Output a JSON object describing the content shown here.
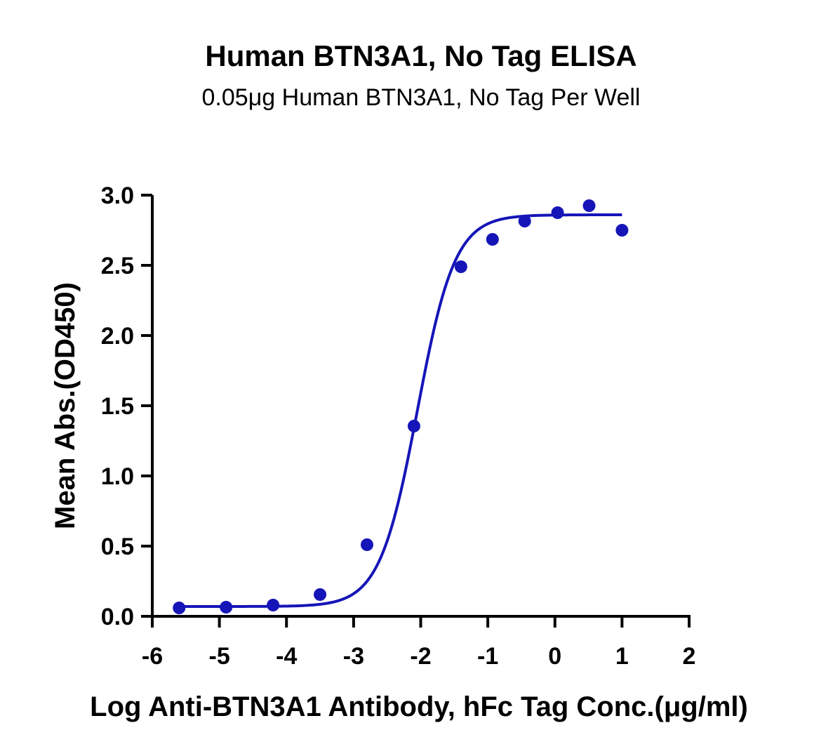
{
  "chart_data": {
    "type": "scatter",
    "title": "Human BTN3A1, No Tag ELISA",
    "subtitle": "0.05μg Human BTN3A1, No Tag Per Well",
    "xlabel": "Log Anti-BTN3A1 Antibody, hFc Tag Conc.(μg/ml)",
    "ylabel": "Mean Abs.(OD450)",
    "xlim": [
      -6,
      2
    ],
    "ylim": [
      0,
      3
    ],
    "x_ticks": [
      "-6",
      "-5",
      "-4",
      "-3",
      "-2",
      "-1",
      "0",
      "1",
      "2"
    ],
    "y_ticks": [
      "0.0",
      "0.5",
      "1.0",
      "1.5",
      "2.0",
      "2.5",
      "3.0"
    ],
    "grid": false,
    "color": "#1515b8",
    "series": [
      {
        "x": [
          -5.6,
          -4.9,
          -4.2,
          -3.5,
          -2.8,
          -2.1,
          -1.4,
          -0.93,
          -0.45,
          0.04,
          0.51,
          1.0
        ],
        "y": [
          0.06,
          0.065,
          0.08,
          0.155,
          0.51,
          1.355,
          2.49,
          2.685,
          2.815,
          2.875,
          2.925,
          2.75
        ]
      }
    ],
    "fit": {
      "model": "4PL",
      "bottom": 0.07,
      "top": 2.86,
      "log_ec50": -2.05,
      "hill_slope": 1.55,
      "x_range": [
        -5.6,
        1.0
      ]
    }
  }
}
